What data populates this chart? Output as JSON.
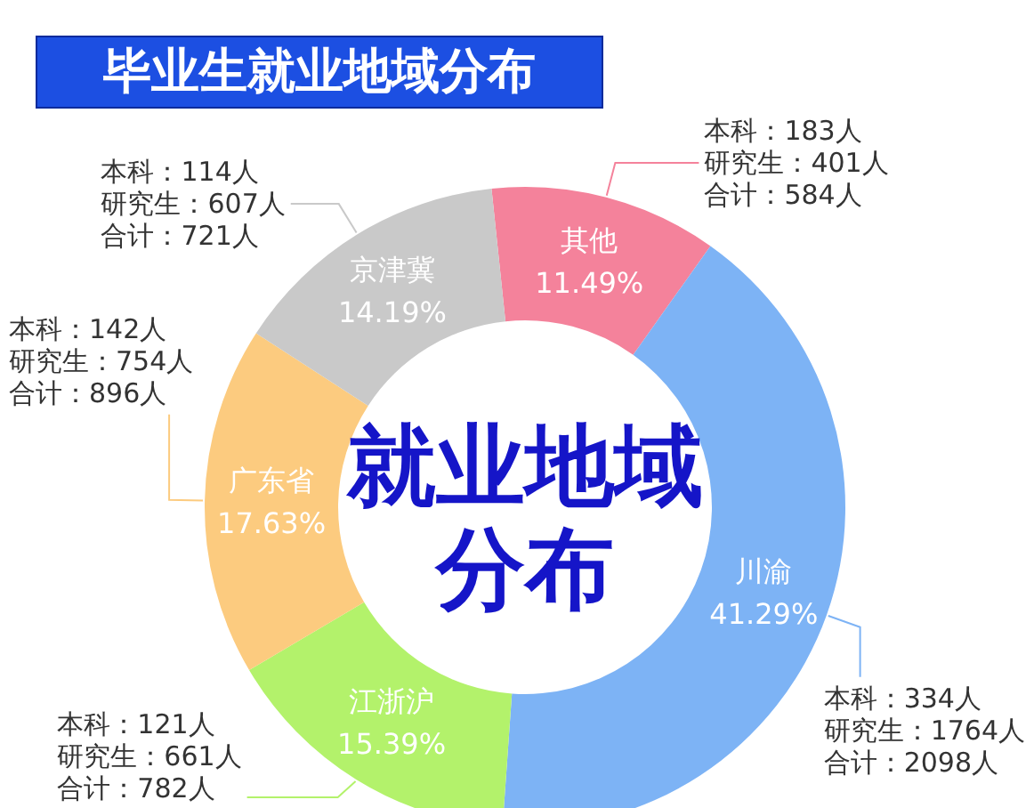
{
  "chart_data": {
    "type": "donut",
    "title": "毕业生就业地域分布",
    "subtitle": "就业地域分布",
    "categories": [
      "其他",
      "川渝",
      "江浙沪",
      "广东省",
      "京津冀"
    ],
    "values": [
      11.49,
      41.29,
      15.39,
      17.63,
      14.19
    ],
    "colors": [
      "#f4829b",
      "#7db3f5",
      "#b3f26b",
      "#fccb7f",
      "#c9c9c9"
    ],
    "value_labels": [
      "11.49%",
      "41.29%",
      "15.39%",
      "17.63%",
      "14.19%"
    ],
    "annotations": [
      "本科：183人研究生：401人合计：584人",
      "本科：334人研究生：1764人合计：2098人",
      "本科：121人研究生：661人合计：782人",
      "本科：142人研究生：754人合计：896人",
      "本科：114人研究生：607人合计：721人"
    ]
  }
}
